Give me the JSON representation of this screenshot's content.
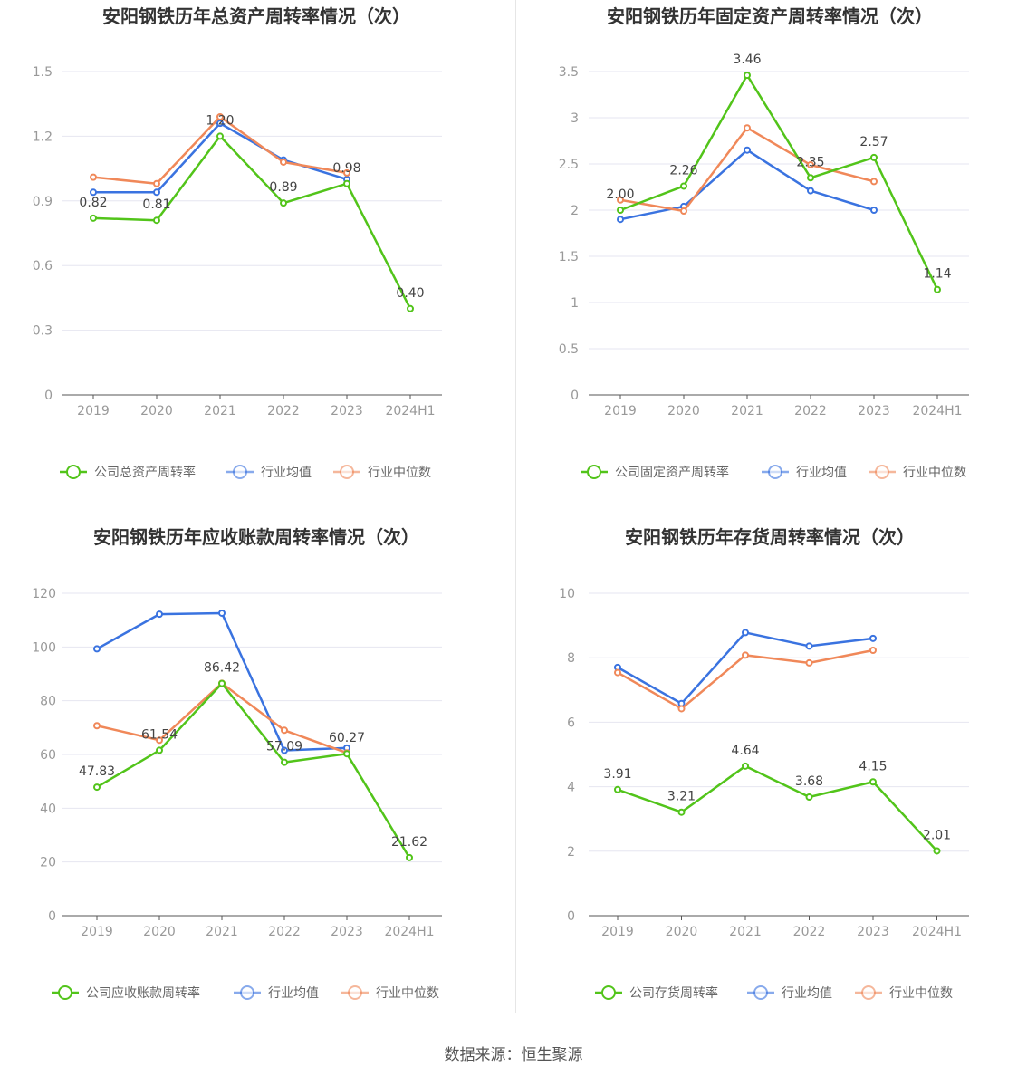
{
  "source": "数据来源：恒生聚源",
  "colors": {
    "company": "#52c41a",
    "avg": "#3a73e0",
    "median": "#f08859",
    "grid": "#e6e6f0",
    "axis": "#555555"
  },
  "chart_data": [
    {
      "type": "line",
      "title": "安阳钢铁历年总资产周转率情况（次）",
      "categories": [
        "2019",
        "2020",
        "2021",
        "2022",
        "2023",
        "2024H1"
      ],
      "ylim": [
        0,
        1.5
      ],
      "yticks": [
        "0",
        "0.3",
        "0.6",
        "0.9",
        "1.2",
        "1.5"
      ],
      "ytick_values": [
        0,
        0.3,
        0.6,
        0.9,
        1.2,
        1.5
      ],
      "legend_position": "bottom",
      "series": [
        {
          "key": "company",
          "name": "公司总资产周转率",
          "values": [
            0.82,
            0.81,
            1.2,
            0.89,
            0.98,
            0.4
          ],
          "labels": [
            "0.82",
            "0.81",
            "1.20",
            "0.89",
            "0.98",
            "0.40"
          ]
        },
        {
          "key": "avg",
          "name": "行业均值",
          "values": [
            0.94,
            0.94,
            1.26,
            1.09,
            1.0,
            null
          ]
        },
        {
          "key": "median",
          "name": "行业中位数",
          "values": [
            1.01,
            0.98,
            1.29,
            1.08,
            1.03,
            null
          ]
        }
      ]
    },
    {
      "type": "line",
      "title": "安阳钢铁历年固定资产周转率情况（次）",
      "categories": [
        "2019",
        "2020",
        "2021",
        "2022",
        "2023",
        "2024H1"
      ],
      "ylim": [
        0,
        3.5
      ],
      "yticks": [
        "0",
        "0.5",
        "1",
        "1.5",
        "2",
        "2.5",
        "3",
        "3.5"
      ],
      "ytick_values": [
        0,
        0.5,
        1,
        1.5,
        2,
        2.5,
        3,
        3.5
      ],
      "legend_position": "bottom",
      "series": [
        {
          "key": "company",
          "name": "公司固定资产周转率",
          "values": [
            2.0,
            2.26,
            3.46,
            2.35,
            2.57,
            1.14
          ],
          "labels": [
            "2.00",
            "2.26",
            "3.46",
            "2.35",
            "2.57",
            "1.14"
          ]
        },
        {
          "key": "avg",
          "name": "行业均值",
          "values": [
            1.9,
            2.04,
            2.65,
            2.21,
            2.0,
            null
          ]
        },
        {
          "key": "median",
          "name": "行业中位数",
          "values": [
            2.11,
            1.99,
            2.89,
            2.49,
            2.31,
            null
          ]
        }
      ]
    },
    {
      "type": "line",
      "title": "安阳钢铁历年应收账款周转率情况（次）",
      "categories": [
        "2019",
        "2020",
        "2021",
        "2022",
        "2023",
        "2024H1"
      ],
      "ylim": [
        0,
        120
      ],
      "yticks": [
        "0",
        "20",
        "40",
        "60",
        "80",
        "100",
        "120"
      ],
      "ytick_values": [
        0,
        20,
        40,
        60,
        80,
        100,
        120
      ],
      "legend_position": "bottom",
      "series": [
        {
          "key": "company",
          "name": "公司应收账款周转率",
          "values": [
            47.83,
            61.54,
            86.42,
            57.09,
            60.27,
            21.62
          ],
          "labels": [
            "47.83",
            "61.54",
            "86.42",
            "57.09",
            "60.27",
            "21.62"
          ]
        },
        {
          "key": "avg",
          "name": "行业均值",
          "values": [
            99.3,
            112.2,
            112.6,
            61.5,
            62.4,
            null
          ]
        },
        {
          "key": "median",
          "name": "行业中位数",
          "values": [
            70.7,
            65.3,
            86.5,
            69.0,
            60.6,
            null
          ]
        }
      ]
    },
    {
      "type": "line",
      "title": "安阳钢铁历年存货周转率情况（次）",
      "categories": [
        "2019",
        "2020",
        "2021",
        "2022",
        "2023",
        "2024H1"
      ],
      "ylim": [
        0,
        10
      ],
      "yticks": [
        "0",
        "2",
        "4",
        "6",
        "8",
        "10"
      ],
      "ytick_values": [
        0,
        2,
        4,
        6,
        8,
        10
      ],
      "legend_position": "bottom",
      "series": [
        {
          "key": "company",
          "name": "公司存货周转率",
          "values": [
            3.91,
            3.21,
            4.64,
            3.68,
            4.15,
            2.01
          ],
          "labels": [
            "3.91",
            "3.21",
            "4.64",
            "3.68",
            "4.15",
            "2.01"
          ]
        },
        {
          "key": "avg",
          "name": "行业均值",
          "values": [
            7.7,
            6.58,
            8.78,
            8.36,
            8.6,
            null
          ]
        },
        {
          "key": "median",
          "name": "行业中位数",
          "values": [
            7.54,
            6.42,
            8.08,
            7.84,
            8.23,
            null
          ]
        }
      ]
    }
  ]
}
